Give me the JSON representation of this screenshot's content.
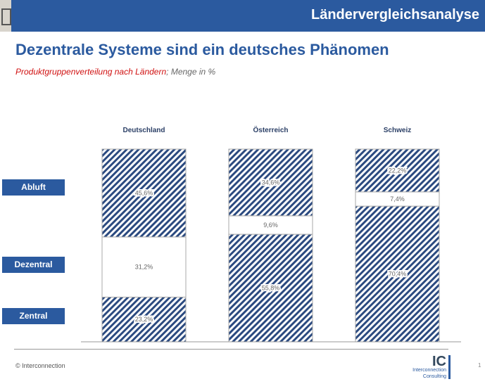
{
  "header": {
    "title": "Ländervergleichsanalyse"
  },
  "title": "Dezentrale Systeme sind ein deutsches Phänomen",
  "subtitle": {
    "red": "Produktgruppenverteilung nach Ländern",
    "rest": "; Menge in %"
  },
  "footer": {
    "copyright": "© Interconnection",
    "page": "1",
    "logo": {
      "mark": "IC",
      "line1": "Interconnection",
      "line2": "Consulting"
    }
  },
  "colors": {
    "brand": "#2b5a9f",
    "hatch": "#2b4a80"
  },
  "chart_data": {
    "type": "bar",
    "stacked": true,
    "unit": "%",
    "categories": [
      "Deutschland",
      "Österreich",
      "Schweiz"
    ],
    "series": [
      {
        "name": "Zentral",
        "values": [
          23.2,
          55.8,
          70.4
        ],
        "labels": [
          "23,2%",
          "55,8%",
          "70,4%"
        ],
        "pattern": "hatched"
      },
      {
        "name": "Dezentral",
        "values": [
          31.2,
          9.6,
          7.4
        ],
        "labels": [
          "31,2%",
          "9,6%",
          "7,4%"
        ],
        "pattern": "white"
      },
      {
        "name": "Abluft",
        "values": [
          45.6,
          34.6,
          22.2
        ],
        "labels": [
          "45,6%",
          "34,6%",
          "22,2%"
        ],
        "pattern": "hatched"
      }
    ],
    "ylim": [
      0,
      100
    ],
    "legend": "left"
  }
}
